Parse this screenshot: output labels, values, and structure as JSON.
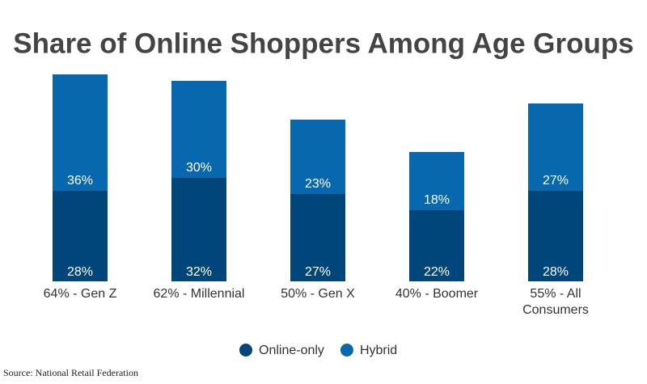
{
  "chart_data": {
    "type": "stacked-bar",
    "title": "Share of Online Shoppers Among Age Groups",
    "categories": [
      "64% - Gen Z",
      "62% - Millennial",
      "50% - Gen X",
      "40% - Boomer",
      "55% - All Consumers"
    ],
    "series": [
      {
        "name": "Online-only",
        "color": "#00467a",
        "values": [
          28,
          32,
          27,
          22,
          28
        ],
        "value_labels": [
          "28%",
          "32%",
          "27%",
          "22%",
          "28%"
        ]
      },
      {
        "name": "Hybrid",
        "color": "#0868ae",
        "values": [
          36,
          30,
          23,
          18,
          27
        ],
        "value_labels": [
          "36%",
          "30%",
          "23%",
          "18%",
          "27%"
        ]
      }
    ],
    "source": "Source: National Retail Federation"
  }
}
